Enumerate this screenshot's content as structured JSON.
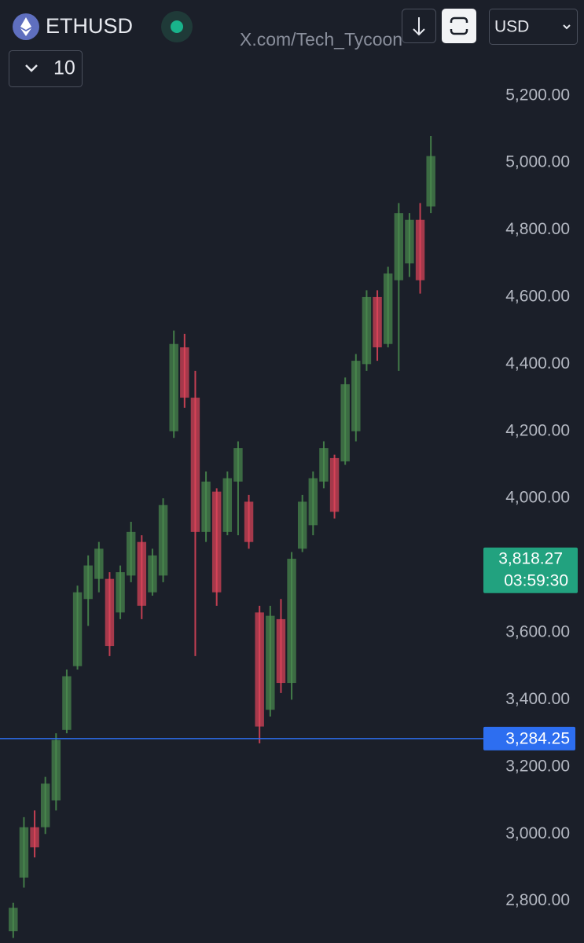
{
  "chart_data": {
    "type": "candlestick",
    "symbol": "ETHUSD",
    "interval": "10",
    "watermark": "X.com/Tech_Tycoon",
    "currency": "USD",
    "categories": [
      null,
      null,
      null,
      null,
      null,
      null,
      null,
      null,
      null,
      null,
      null,
      null,
      null,
      null,
      null,
      null,
      null,
      null,
      null,
      null,
      null,
      null,
      null,
      null,
      null,
      null,
      null,
      null,
      null,
      null,
      null,
      null,
      null,
      null,
      null,
      null,
      null,
      null,
      null,
      null
    ],
    "open": [
      2710,
      2870,
      3020,
      3020,
      3100,
      3310,
      3500,
      3700,
      3760,
      3760,
      3660,
      3770,
      3870,
      3720,
      3770,
      4200,
      4450,
      4300,
      3900,
      4020,
      3900,
      4050,
      3990,
      3660,
      3370,
      3640,
      3450,
      3850,
      3920,
      4050,
      4120,
      4110,
      4200,
      4400,
      4600,
      4460,
      4650,
      4700,
      4830,
      4870
    ],
    "high": [
      2795,
      3050,
      3070,
      3170,
      3300,
      3490,
      3740,
      3830,
      3870,
      3780,
      3800,
      3930,
      3890,
      3850,
      4000,
      4500,
      4490,
      4380,
      4080,
      4030,
      4080,
      4170,
      4010,
      3680,
      3680,
      3700,
      3840,
      4010,
      4080,
      4170,
      4130,
      4360,
      4430,
      4620,
      4620,
      4690,
      4880,
      4850,
      4880,
      5080
    ],
    "low": [
      2690,
      2840,
      2930,
      3000,
      3070,
      3300,
      3490,
      3620,
      3720,
      3530,
      3640,
      3750,
      3640,
      3710,
      3750,
      4180,
      4270,
      3530,
      3870,
      3680,
      3890,
      3890,
      3850,
      3270,
      3350,
      3420,
      3400,
      3840,
      3890,
      4030,
      3940,
      4100,
      4170,
      4380,
      4410,
      4450,
      4380,
      4660,
      4610,
      4850
    ],
    "close": [
      2780,
      3020,
      2960,
      3150,
      3280,
      3470,
      3720,
      3800,
      3850,
      3560,
      3780,
      3900,
      3680,
      3830,
      3980,
      4460,
      4300,
      3900,
      4050,
      3720,
      4060,
      4150,
      3870,
      3320,
      3650,
      3450,
      3820,
      3990,
      4060,
      4150,
      3960,
      4340,
      4410,
      4600,
      4450,
      4670,
      4850,
      4830,
      4650,
      5020
    ],
    "up_color": "#4a8c4e",
    "down_color": "#e0455a",
    "ylim": [
      2675,
      5485
    ],
    "yticks": [
      {
        "value": 2800,
        "label": "2,800.00"
      },
      {
        "value": 3000,
        "label": "3,000.00"
      },
      {
        "value": 3200,
        "label": "3,200.00"
      },
      {
        "value": 3400,
        "label": "3,400.00"
      },
      {
        "value": 3600,
        "label": "3,600.00"
      },
      {
        "value": 3800,
        "label": "3,800.00"
      },
      {
        "value": 4000,
        "label": "4,000.00"
      },
      {
        "value": 4200,
        "label": "4,200.00"
      },
      {
        "value": 4400,
        "label": "4,400.00"
      },
      {
        "value": 4600,
        "label": "4,600.00"
      },
      {
        "value": 4800,
        "label": "4,800.00"
      },
      {
        "value": 5000,
        "label": "5,000.00"
      },
      {
        "value": 5200,
        "label": "5,200.00"
      }
    ],
    "last_price": {
      "value": 3818.27,
      "label": "3,818.27"
    },
    "countdown": "03:59:30",
    "last_price_color": "#22a27f",
    "price_line": {
      "value": 3284.25,
      "label": "3,284.25"
    },
    "price_line_color": "#2d6ef0"
  }
}
